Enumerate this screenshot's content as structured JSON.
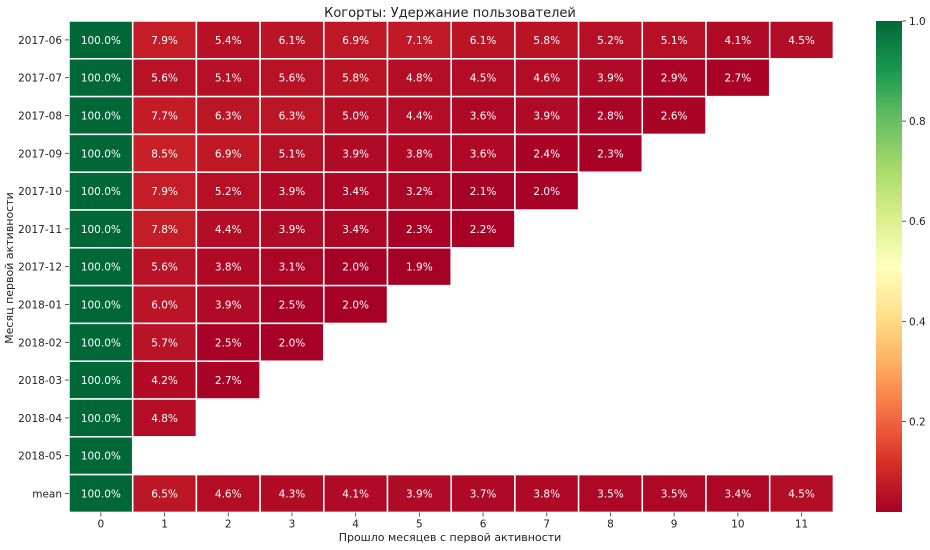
{
  "chart_data": {
    "type": "heatmap",
    "title": "Когорты: Удержание пользователей",
    "xlabel": "Прошло месяцев с первой активности",
    "ylabel": "Месяц первой активности",
    "x_categories": [
      "0",
      "1",
      "2",
      "3",
      "4",
      "5",
      "6",
      "7",
      "8",
      "9",
      "10",
      "11"
    ],
    "y_categories": [
      "2017-06",
      "2017-07",
      "2017-08",
      "2017-09",
      "2017-10",
      "2017-11",
      "2017-12",
      "2018-01",
      "2018-02",
      "2018-03",
      "2018-04",
      "2018-05",
      "mean"
    ],
    "values": [
      [
        1.0,
        0.079,
        0.054,
        0.061,
        0.069,
        0.071,
        0.061,
        0.058,
        0.052,
        0.051,
        0.041,
        0.045
      ],
      [
        1.0,
        0.056,
        0.051,
        0.056,
        0.058,
        0.048,
        0.045,
        0.046,
        0.039,
        0.029,
        0.027
      ],
      [
        1.0,
        0.077,
        0.063,
        0.063,
        0.05,
        0.044,
        0.036,
        0.039,
        0.028,
        0.026
      ],
      [
        1.0,
        0.085,
        0.069,
        0.051,
        0.039,
        0.038,
        0.036,
        0.024,
        0.023
      ],
      [
        1.0,
        0.079,
        0.052,
        0.039,
        0.034,
        0.032,
        0.021,
        0.02
      ],
      [
        1.0,
        0.078,
        0.044,
        0.039,
        0.034,
        0.023,
        0.022
      ],
      [
        1.0,
        0.056,
        0.038,
        0.031,
        0.02,
        0.019
      ],
      [
        1.0,
        0.06,
        0.039,
        0.025,
        0.02
      ],
      [
        1.0,
        0.057,
        0.025,
        0.02
      ],
      [
        1.0,
        0.042,
        0.027
      ],
      [
        1.0,
        0.048
      ],
      [
        1.0
      ],
      [
        1.0,
        0.065,
        0.046,
        0.043,
        0.041,
        0.039,
        0.037,
        0.038,
        0.035,
        0.035,
        0.034,
        0.045
      ]
    ],
    "labels": [
      [
        "100.0%",
        "7.9%",
        "5.4%",
        "6.1%",
        "6.9%",
        "7.1%",
        "6.1%",
        "5.8%",
        "5.2%",
        "5.1%",
        "4.1%",
        "4.5%"
      ],
      [
        "100.0%",
        "5.6%",
        "5.1%",
        "5.6%",
        "5.8%",
        "4.8%",
        "4.5%",
        "4.6%",
        "3.9%",
        "2.9%",
        "2.7%"
      ],
      [
        "100.0%",
        "7.7%",
        "6.3%",
        "6.3%",
        "5.0%",
        "4.4%",
        "3.6%",
        "3.9%",
        "2.8%",
        "2.6%"
      ],
      [
        "100.0%",
        "8.5%",
        "6.9%",
        "5.1%",
        "3.9%",
        "3.8%",
        "3.6%",
        "2.4%",
        "2.3%"
      ],
      [
        "100.0%",
        "7.9%",
        "5.2%",
        "3.9%",
        "3.4%",
        "3.2%",
        "2.1%",
        "2.0%"
      ],
      [
        "100.0%",
        "7.8%",
        "4.4%",
        "3.9%",
        "3.4%",
        "2.3%",
        "2.2%"
      ],
      [
        "100.0%",
        "5.6%",
        "3.8%",
        "3.1%",
        "2.0%",
        "1.9%"
      ],
      [
        "100.0%",
        "6.0%",
        "3.9%",
        "2.5%",
        "2.0%"
      ],
      [
        "100.0%",
        "5.7%",
        "2.5%",
        "2.0%"
      ],
      [
        "100.0%",
        "4.2%",
        "2.7%"
      ],
      [
        "100.0%",
        "4.8%"
      ],
      [
        "100.0%"
      ],
      [
        "100.0%",
        "6.5%",
        "4.6%",
        "4.3%",
        "4.1%",
        "3.9%",
        "3.7%",
        "3.8%",
        "3.5%",
        "3.5%",
        "3.4%",
        "4.5%"
      ]
    ],
    "colormap": "RdYlGn",
    "vmin": 0.019,
    "vmax": 1.0,
    "colorbar_ticks": [
      "0.2",
      "0.4",
      "0.6",
      "0.8",
      "1.0"
    ],
    "colorbar_tick_values": [
      0.2,
      0.4,
      0.6,
      0.8,
      1.0
    ],
    "grid_line_color": "#ffffff",
    "label_color": "#ffffff"
  }
}
